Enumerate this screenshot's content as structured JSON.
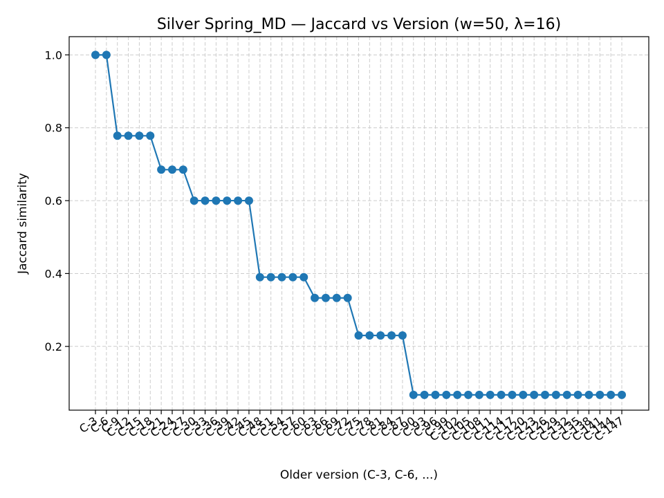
{
  "chart_data": {
    "type": "line",
    "title": "Silver Spring_MD — Jaccard vs Version (w=50, λ=16)",
    "xlabel": "Older version (C-3, C-6, ...)",
    "ylabel": "Jaccard similarity",
    "categories": [
      "C-3",
      "C-6",
      "C-9",
      "C-12",
      "C-15",
      "C-18",
      "C-21",
      "C-24",
      "C-27",
      "C-30",
      "C-33",
      "C-36",
      "C-39",
      "C-42",
      "C-45",
      "C-48",
      "C-51",
      "C-54",
      "C-57",
      "C-60",
      "C-63",
      "C-66",
      "C-69",
      "C-72",
      "C-75",
      "C-78",
      "C-81",
      "C-84",
      "C-87",
      "C-90",
      "C-93",
      "C-96",
      "C-99",
      "C-102",
      "C-105",
      "C-108",
      "C-111",
      "C-114",
      "C-117",
      "C-120",
      "C-123",
      "C-126",
      "C-129",
      "C-132",
      "C-135",
      "C-138",
      "C-141",
      "C-144",
      "C-147"
    ],
    "series": [
      {
        "values": [
          1.0,
          1.0,
          0.778,
          0.778,
          0.778,
          0.778,
          0.685,
          0.685,
          0.685,
          0.6,
          0.6,
          0.6,
          0.6,
          0.6,
          0.6,
          0.39,
          0.39,
          0.39,
          0.39,
          0.39,
          0.333,
          0.333,
          0.333,
          0.333,
          0.23,
          0.23,
          0.23,
          0.23,
          0.23,
          0.067,
          0.067,
          0.067,
          0.067,
          0.067,
          0.067,
          0.067,
          0.067,
          0.067,
          0.067,
          0.067,
          0.067,
          0.067,
          0.067,
          0.067,
          0.067,
          0.067,
          0.067,
          0.067,
          0.067
        ],
        "color": "#1f77b4"
      }
    ],
    "yticks": [
      "0.2",
      "0.4",
      "0.6",
      "0.8",
      "1.0"
    ],
    "ylim": [
      0.025,
      1.05
    ],
    "grid": true,
    "grid_style": "dashed",
    "legend": "none"
  }
}
